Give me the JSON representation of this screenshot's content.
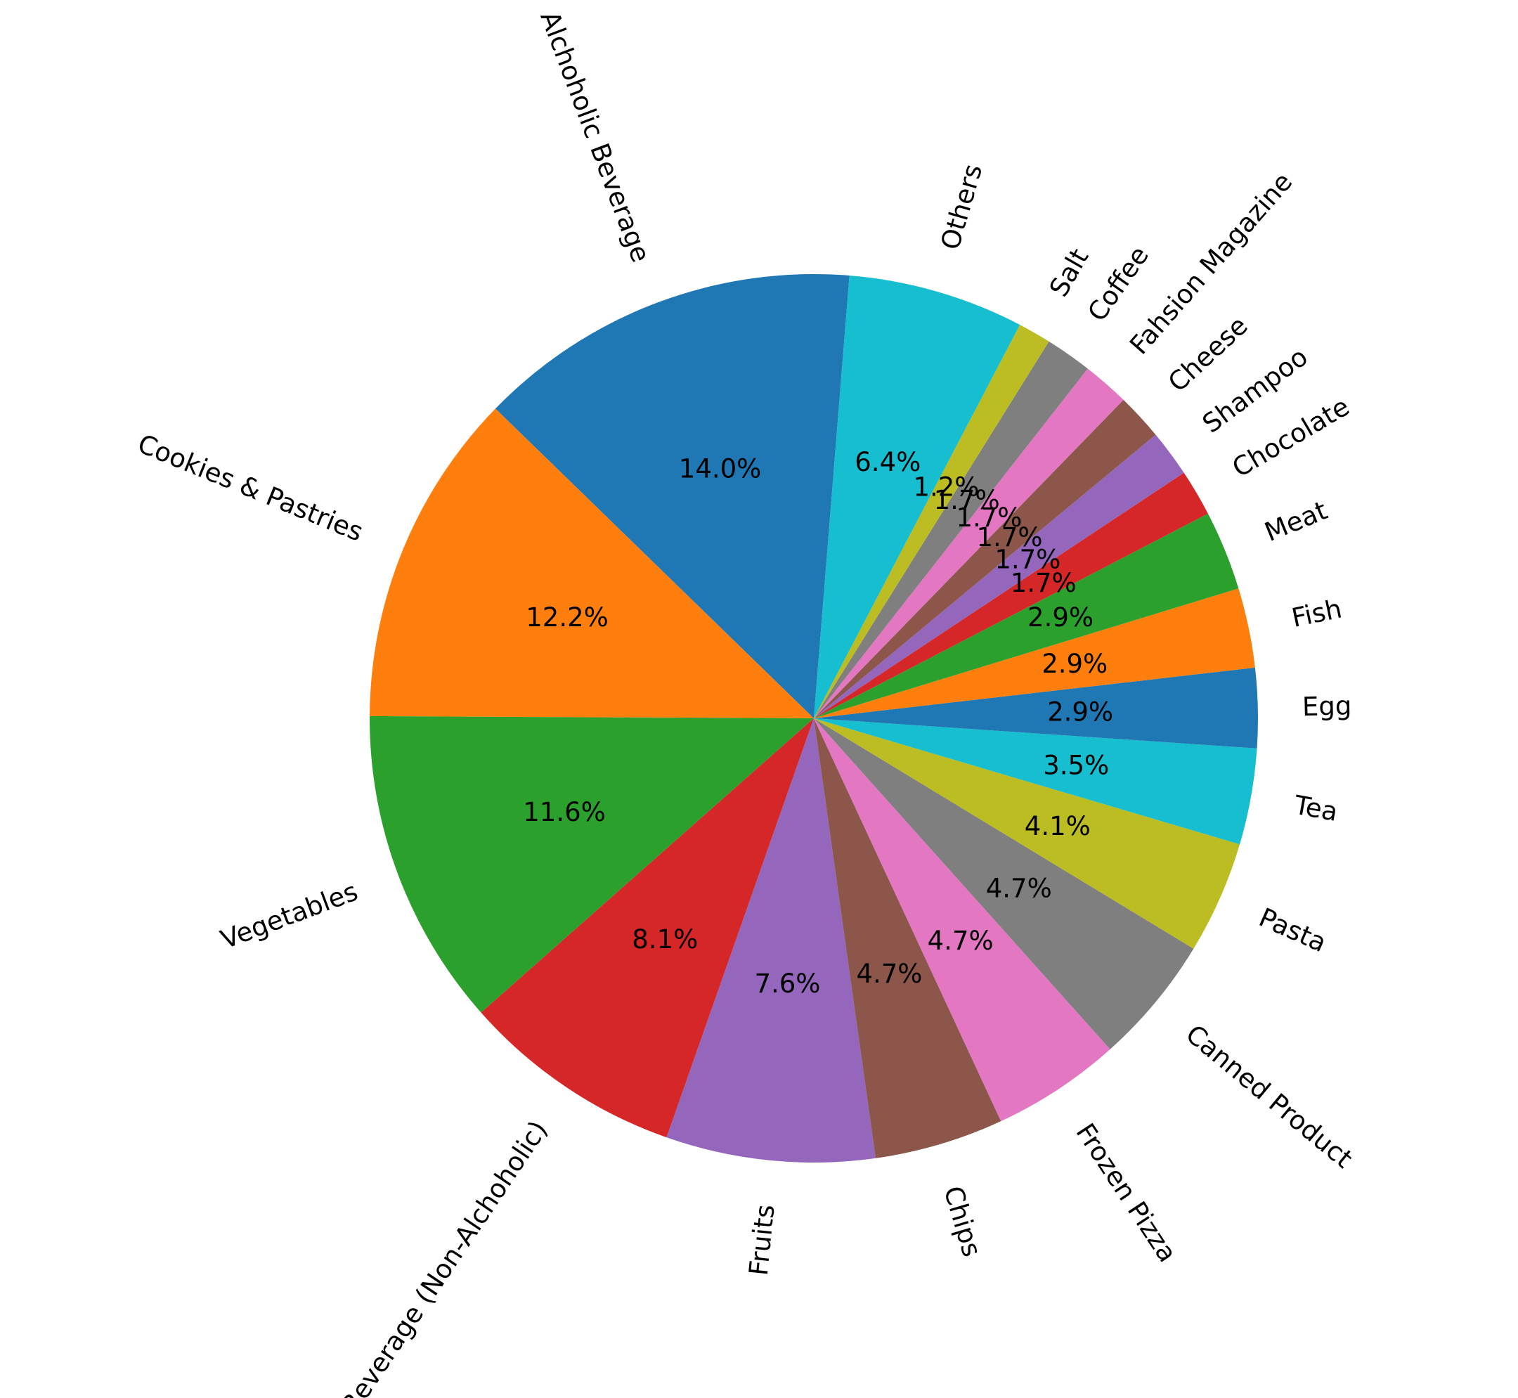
{
  "chart_data": {
    "type": "pie",
    "start_angle_deg": 85.4,
    "direction": "counterclockwise",
    "label_rotation": "radial",
    "slices": [
      {
        "label": "Alchoholic Beverage",
        "value": 14.0,
        "pct_label": "14.0%",
        "color": "#1f77b4"
      },
      {
        "label": "Cookies & Pastries",
        "value": 12.2,
        "pct_label": "12.2%",
        "color": "#ff7f0e"
      },
      {
        "label": "Vegetables",
        "value": 11.6,
        "pct_label": "11.6%",
        "color": "#2ca02c"
      },
      {
        "label": "Beverage (Non-Alchoholic)",
        "value": 8.1,
        "pct_label": "8.1%",
        "color": "#d62728"
      },
      {
        "label": "Fruits",
        "value": 7.6,
        "pct_label": "7.6%",
        "color": "#9467bd"
      },
      {
        "label": "Chips",
        "value": 4.7,
        "pct_label": "4.7%",
        "color": "#8c564b"
      },
      {
        "label": "Frozen Pizza",
        "value": 4.7,
        "pct_label": "4.7%",
        "color": "#e377c2"
      },
      {
        "label": "Canned Product",
        "value": 4.7,
        "pct_label": "4.7%",
        "color": "#7f7f7f"
      },
      {
        "label": "Pasta",
        "value": 4.1,
        "pct_label": "4.1%",
        "color": "#bcbd22"
      },
      {
        "label": "Tea",
        "value": 3.5,
        "pct_label": "3.5%",
        "color": "#17becf"
      },
      {
        "label": "Egg",
        "value": 2.9,
        "pct_label": "2.9%",
        "color": "#1f77b4"
      },
      {
        "label": "Fish",
        "value": 2.9,
        "pct_label": "2.9%",
        "color": "#ff7f0e"
      },
      {
        "label": "Meat",
        "value": 2.9,
        "pct_label": "2.9%",
        "color": "#2ca02c"
      },
      {
        "label": "Chocolate",
        "value": 1.7,
        "pct_label": "1.7%",
        "color": "#d62728"
      },
      {
        "label": "Shampoo",
        "value": 1.7,
        "pct_label": "1.7%",
        "color": "#9467bd"
      },
      {
        "label": "Cheese",
        "value": 1.7,
        "pct_label": "1.7%",
        "color": "#8c564b"
      },
      {
        "label": "Fahsion Magazine",
        "value": 1.7,
        "pct_label": "1.7%",
        "color": "#e377c2"
      },
      {
        "label": "Coffee",
        "value": 1.7,
        "pct_label": "1.7%",
        "color": "#7f7f7f"
      },
      {
        "label": "Salt",
        "value": 1.2,
        "pct_label": "1.2%",
        "color": "#bcbd22"
      },
      {
        "label": "Others",
        "value": 6.4,
        "pct_label": "6.4%",
        "color": "#17becf"
      }
    ]
  }
}
